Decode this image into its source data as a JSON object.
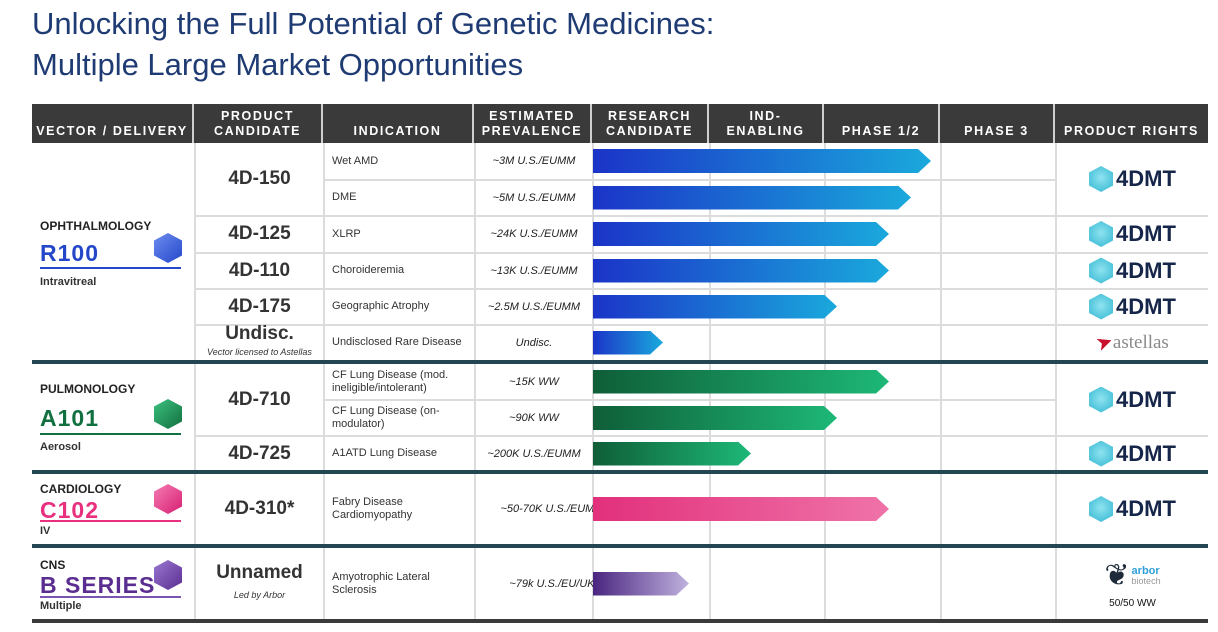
{
  "title": {
    "line1": "Unlocking the Full Potential of Genetic Medicines:",
    "line2": "Multiple Large Market Opportunities"
  },
  "headers": {
    "vector": "VECTOR / DELIVERY",
    "candidate": "PRODUCT CANDIDATE",
    "indication": "INDICATION",
    "prevalence": "ESTIMATED PREVALENCE",
    "research": "RESEARCH CANDIDATE",
    "ind": "IND- ENABLING",
    "phase12": "PHASE 1/2",
    "phase3": "PHASE 3",
    "rights": "PRODUCT RIGHTS"
  },
  "groups": [
    {
      "area": "OPHTHALMOLOGY",
      "code": "R100",
      "delivery": "Intravitreal",
      "color": "#2447c9"
    },
    {
      "area": "PULMONOLOGY",
      "code": "A101",
      "delivery": "Aerosol",
      "color": "#11703f"
    },
    {
      "area": "CARDIOLOGY",
      "code": "C102",
      "delivery": "IV",
      "color": "#e8307f"
    },
    {
      "area": "CNS",
      "code": "B SERIES",
      "delivery": "Multiple",
      "color": "#5a2d91"
    }
  ],
  "candidates": [
    {
      "name": "4D-150"
    },
    {
      "name": "4D-125"
    },
    {
      "name": "4D-110"
    },
    {
      "name": "4D-175"
    },
    {
      "name": "Undisc.",
      "note": "Vector licensed to Astellas"
    },
    {
      "name": "4D-710"
    },
    {
      "name": "4D-725"
    },
    {
      "name": "4D-310*"
    },
    {
      "name": "Unnamed",
      "note": "Led by Arbor"
    }
  ],
  "rows": [
    {
      "indication": "Wet AMD",
      "prevalence": "~3M U.S./EUMM",
      "progress_phases": 2.91
    },
    {
      "indication": "DME",
      "prevalence": "~5M U.S./EUMM",
      "progress_phases": 2.74
    },
    {
      "indication": "XLRP",
      "prevalence": "~24K U.S./EUMM",
      "progress_phases": 2.55
    },
    {
      "indication": "Choroideremia",
      "prevalence": "~13K U.S./EUMM",
      "progress_phases": 2.55
    },
    {
      "indication": "Geographic Atrophy",
      "prevalence": "~2.5M U.S./EUMM",
      "progress_phases": 2.1
    },
    {
      "indication": "Undisclosed Rare Disease",
      "prevalence": "Undisc.",
      "progress_phases": 0.6
    },
    {
      "indication": "CF Lung Disease (mod. ineligible/intolerant)",
      "prevalence": "~15K WW",
      "progress_phases": 2.55
    },
    {
      "indication": "CF Lung Disease (on-modulator)",
      "prevalence": "~90K WW",
      "progress_phases": 2.1
    },
    {
      "indication": "A1ATD Lung Disease",
      "prevalence": "~200K U.S./EUMM",
      "progress_phases": 1.36
    },
    {
      "indication": "Fabry Disease Cardiomyopathy",
      "prevalence": "~50-70K U.S./EUMM",
      "progress_phases": 2.55
    },
    {
      "indication": "Amyotrophic Lateral Sclerosis",
      "prevalence": "~79k U.S./EU/UK",
      "progress_phases": 0.83
    }
  ],
  "rights": {
    "dmt": "4DMT",
    "astellas": "astellas",
    "arbor": "arbor",
    "arbor_sub": "biotech",
    "arbor_share": "50/50 WW"
  }
}
